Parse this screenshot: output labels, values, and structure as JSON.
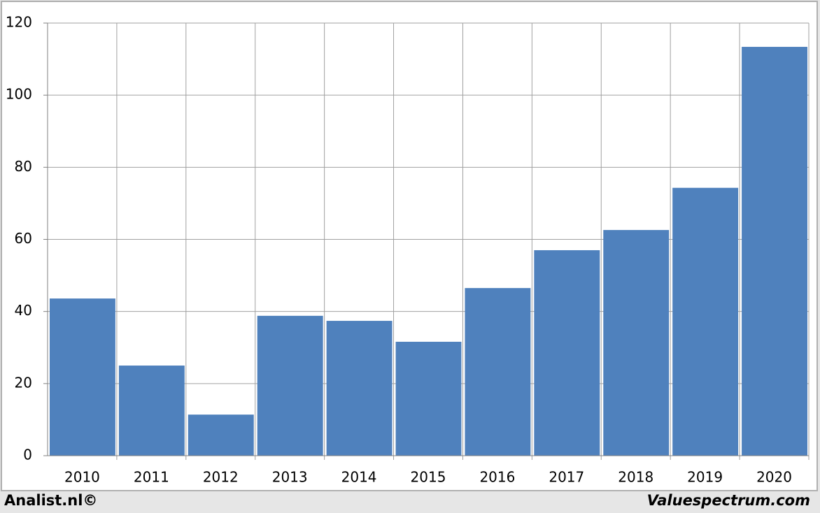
{
  "chart_data": {
    "type": "bar",
    "categories": [
      "2010",
      "2011",
      "2012",
      "2013",
      "2014",
      "2015",
      "2016",
      "2017",
      "2018",
      "2019",
      "2020"
    ],
    "values": [
      43.6,
      25.0,
      11.4,
      38.8,
      37.4,
      31.6,
      46.5,
      57.0,
      62.6,
      74.3,
      113.4
    ],
    "color": "#4f81bd",
    "ylim": [
      0,
      120
    ],
    "yticks": [
      0,
      20,
      40,
      60,
      80,
      100,
      120
    ],
    "grid": true
  },
  "footer": {
    "left": "Analist.nl©",
    "right": "Valuespectrum.com"
  }
}
